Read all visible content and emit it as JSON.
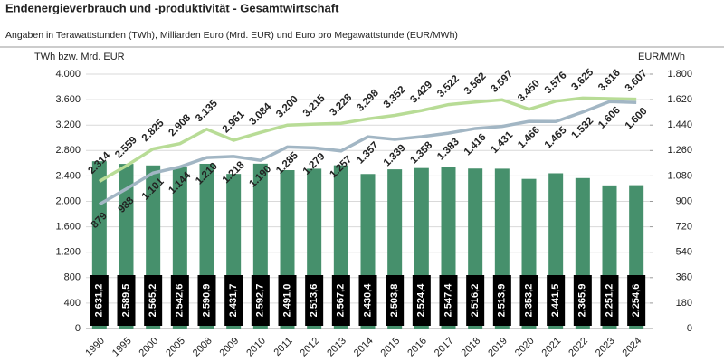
{
  "chart_data": {
    "type": "bar",
    "title": "Endenergieverbrauch und -produktivität - Gesamtwirtschaft",
    "subtitle": "Angaben in Terawattstunden (TWh), Milliarden Euro (Mrd. EUR) und Euro pro Megawattstunde (EUR/MWh)",
    "y_label": "TWh bzw. Mrd. EUR",
    "y2_label": "EUR/MWh",
    "categories": [
      "1990",
      "1995",
      "2000",
      "2005",
      "2008",
      "2009",
      "2010",
      "2011",
      "2012",
      "2013",
      "2014",
      "2015",
      "2016",
      "2017",
      "2018",
      "2019",
      "2020",
      "2021",
      "2022",
      "2023",
      "2024"
    ],
    "ylim": [
      0,
      4000
    ],
    "yticks": [
      0,
      400,
      800,
      {
        "value": 1200,
        "label": "1.200"
      },
      {
        "value": 1600,
        "label": "1.600"
      },
      {
        "value": 2000,
        "label": "2.000"
      },
      {
        "value": 2400,
        "label": "2.400"
      },
      {
        "value": 2800,
        "label": "2.800"
      },
      {
        "value": 3200,
        "label": "3.200"
      },
      {
        "value": 3600,
        "label": "3.600"
      },
      {
        "value": 4000,
        "label": "4.000"
      }
    ],
    "y2lim": [
      0,
      1800
    ],
    "y2ticks": [
      0,
      180,
      360,
      540,
      720,
      900,
      {
        "value": 1080,
        "label": "1.080"
      },
      {
        "value": 1260,
        "label": "1.260"
      },
      {
        "value": 1440,
        "label": "1.440"
      },
      {
        "value": 1620,
        "label": "1.620"
      },
      {
        "value": 1800,
        "label": "1.800"
      }
    ],
    "grid": true,
    "series": [
      {
        "type": "bar",
        "color": "#46906c",
        "values": [
          2631.2,
          2589.5,
          2565.2,
          2542.6,
          2590.9,
          2431.7,
          2592.7,
          2491.0,
          2513.6,
          2567.2,
          2430.4,
          2503.8,
          2524.4,
          2547.4,
          2516.2,
          2513.9,
          2353.2,
          2441.5,
          2365.9,
          2251.2,
          2254.6
        ],
        "value_labels": [
          "2.631,2",
          "2.589,5",
          "2.565,2",
          "2.542,6",
          "2.590,9",
          "2.431,7",
          "2.592,7",
          "2.491,0",
          "2.513,6",
          "2.567,2",
          "2.430,4",
          "2.503,8",
          "2.524,4",
          "2.547,4",
          "2.516,2",
          "2.513,9",
          "2.353,2",
          "2.441,5",
          "2.365,9",
          "2.251,2",
          "2.254,6"
        ]
      },
      {
        "type": "line",
        "color": "#b8dc96",
        "values": [
          2314,
          2559,
          2825,
          2908,
          3135,
          2961,
          3084,
          3200,
          3215,
          3228,
          3298,
          3352,
          3429,
          3522,
          3562,
          3597,
          3450,
          3576,
          3625,
          3616,
          3607
        ],
        "value_labels": [
          "2.314",
          "2.559",
          "2.825",
          "2.908",
          "3.135",
          "2.961",
          "3.084",
          "3.200",
          "3.215",
          "3.228",
          "3.298",
          "3.352",
          "3.429",
          "3.522",
          "3.562",
          "3.597",
          "3.450",
          "3.576",
          "3.625",
          "3.616",
          "3.607"
        ]
      },
      {
        "type": "line",
        "axis": "y2",
        "color": "#a2b6c4",
        "values": [
          879,
          988,
          1101,
          1144,
          1210,
          1218,
          1190,
          1285,
          1279,
          1257,
          1357,
          1339,
          1358,
          1383,
          1416,
          1431,
          1466,
          1465,
          1532,
          1606,
          1600
        ],
        "value_labels": [
          "879",
          "988",
          "1.101",
          "1.144",
          "1.210",
          "1.218",
          "1.190",
          "1.285",
          "1.279",
          "1.257",
          "1.357",
          "1.339",
          "1.358",
          "1.383",
          "1.416",
          "1.431",
          "1.466",
          "1.465",
          "1.532",
          "1.606",
          "1.600"
        ]
      }
    ]
  }
}
